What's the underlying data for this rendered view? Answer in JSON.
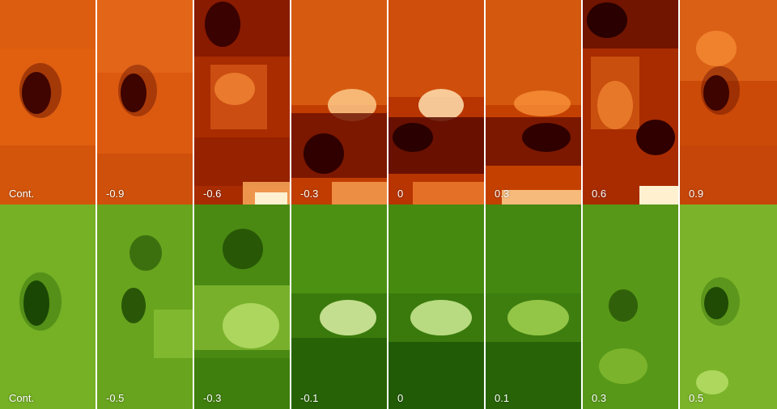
{
  "rows": [
    {
      "colormap": "red",
      "colors": {
        "dark": "#2a0000",
        "mid": "#b03300",
        "light": "#ff9a30",
        "bright": "#fff0d0"
      },
      "labels": [
        "Cont.",
        "-0.9",
        "-0.6",
        "-0.3",
        "0",
        "0.3",
        "0.6",
        "0.9"
      ]
    },
    {
      "colormap": "green",
      "colors": {
        "dark": "#0a2a00",
        "mid": "#3f8a10",
        "light": "#a6d840",
        "bright": "#eefbc8"
      },
      "labels": [
        "Cont.",
        "-0.5",
        "-0.3",
        "-0.1",
        "0",
        "0.1",
        "0.3",
        "0.5"
      ]
    }
  ]
}
